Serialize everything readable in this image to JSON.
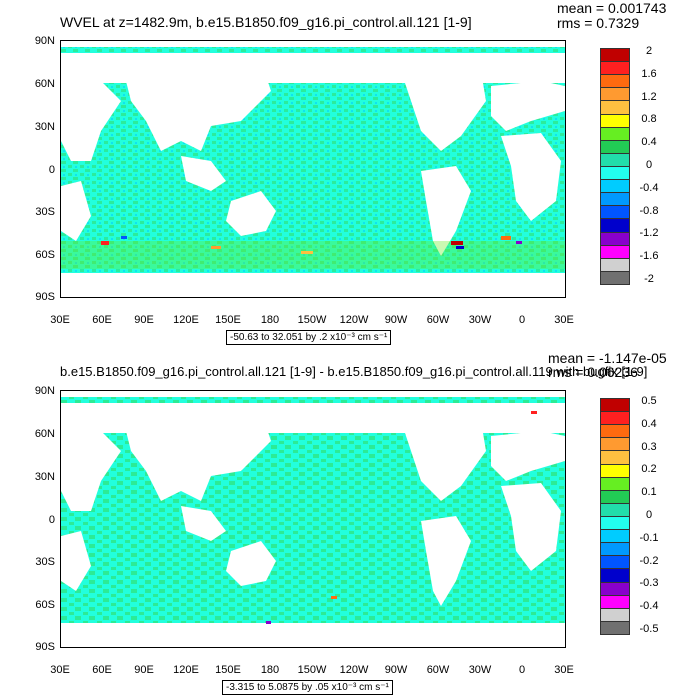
{
  "panel1": {
    "title": "WVEL at z=1482.9m, b.e15.B1850.f09_g16.pi_control.all.121 [1-9]",
    "mean": "mean = 0.001743",
    "rms": "rms = 0.7329",
    "info": "-50.63 to 32.051 by .2 x10⁻³ cm s⁻¹",
    "colorbar_labels": [
      "2",
      "1.6",
      "1.2",
      "0.8",
      "0.4",
      "0",
      "-0.4",
      "-0.8",
      "-1.2",
      "-1.6",
      "-2"
    ]
  },
  "panel2": {
    "title": "b.e15.B1850.f09_g16.pi_control.all.121 [1-9] - b.e15.B1850.f09_g16.pi_control.all.119 with bugfix [1-9]",
    "mean": "mean = -1.147e-05",
    "rms": "rms = 0.06236",
    "info": "-3.315 to 5.0875 by .05 x10⁻³ cm s⁻¹",
    "colorbar_labels": [
      "0.5",
      "0.4",
      "0.3",
      "0.2",
      "0.1",
      "0",
      "-0.1",
      "-0.2",
      "-0.3",
      "-0.4",
      "-0.5"
    ]
  },
  "lat_labels": [
    "90N",
    "60N",
    "30N",
    "0",
    "30S",
    "60S",
    "90S"
  ],
  "lon_labels": [
    "30E",
    "60E",
    "90E",
    "120E",
    "150E",
    "180",
    "150W",
    "120W",
    "90W",
    "60W",
    "30W",
    "0",
    "30E"
  ],
  "colorbar_colors": [
    "#c00000",
    "#ff2020",
    "#ff6a10",
    "#ff9a30",
    "#ffc040",
    "#ffff00",
    "#66ee22",
    "#22cc55",
    "#22ddaa",
    "#22ffee",
    "#00ccff",
    "#0099ff",
    "#0055ff",
    "#0000cc",
    "#8800cc",
    "#ff00ff",
    "#d0d0d0",
    "#707070"
  ],
  "ocean_color_main": "#22ffdd",
  "ocean_color_alt": "#33dd66"
}
